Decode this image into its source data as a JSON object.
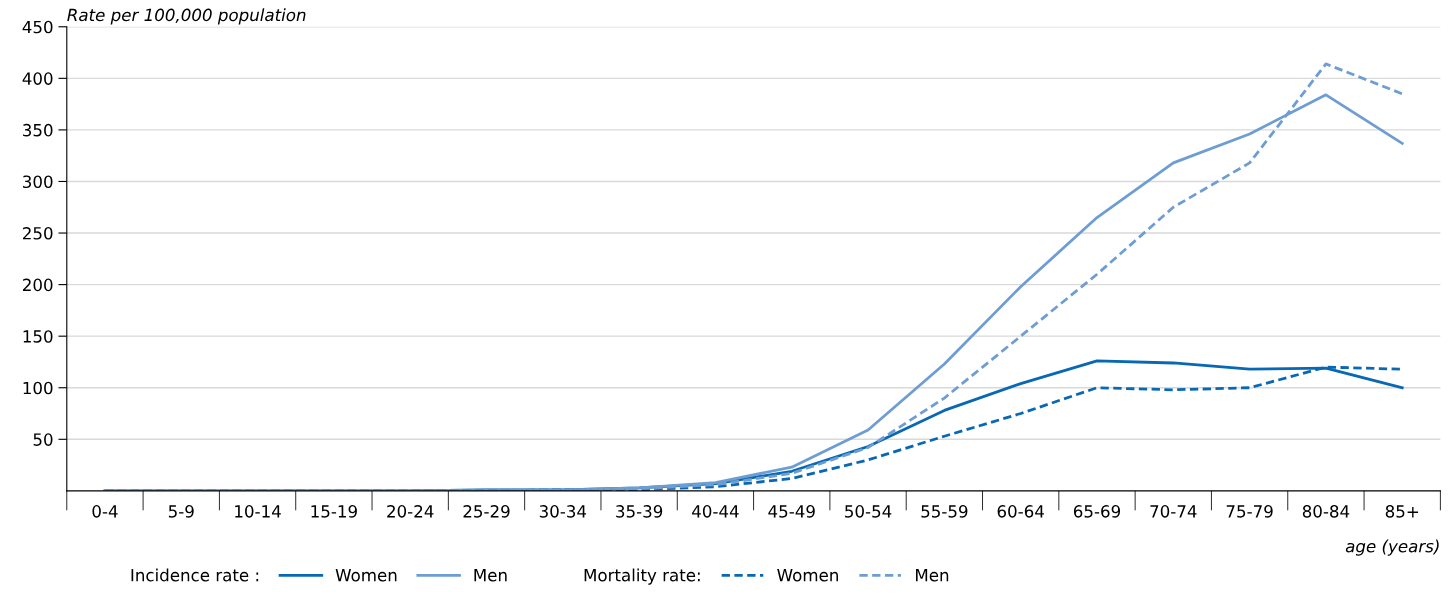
{
  "chart_data": {
    "type": "line",
    "ylabel": "Rate per 100,000 population",
    "xlabel": "age (years)",
    "categories": [
      "0-4",
      "5-9",
      "10-14",
      "15-19",
      "20-24",
      "25-29",
      "30-34",
      "35-39",
      "40-44",
      "45-49",
      "50-54",
      "55-59",
      "60-64",
      "65-69",
      "70-74",
      "75-79",
      "80-84",
      "85+"
    ],
    "series": [
      {
        "name": "Women",
        "color": "#0868b4",
        "line_style": "solid",
        "values": [
          0,
          0,
          0,
          0,
          0,
          1,
          1,
          3,
          7,
          19,
          43,
          78,
          104,
          126,
          124,
          118,
          119,
          100
        ]
      },
      {
        "name": "Men",
        "color": "#6d9dd3",
        "line_style": "solid",
        "values": [
          0,
          0,
          0,
          0,
          0,
          1,
          1,
          3,
          8,
          23,
          59,
          123,
          198,
          265,
          318,
          346,
          384,
          337
        ]
      },
      {
        "name": "Women",
        "color": "#0868b4",
        "line_style": "dashed",
        "values": [
          0,
          0,
          0,
          0,
          0,
          0,
          1,
          1,
          4,
          12,
          30,
          53,
          75,
          100,
          98,
          100,
          120,
          118
        ]
      },
      {
        "name": "Men",
        "color": "#6d9dd3",
        "line_style": "dashed",
        "values": [
          0,
          0,
          0,
          0,
          0,
          0,
          1,
          2,
          6,
          17,
          42,
          90,
          150,
          210,
          275,
          318,
          414,
          385
        ]
      }
    ],
    "ylim": [
      0,
      450
    ],
    "yticks": [
      50,
      100,
      150,
      200,
      250,
      300,
      350,
      400,
      450
    ],
    "grid": "y",
    "legend": "bottom",
    "marker": "none",
    "annotations": [
      "Incidence rate :",
      "Mortality rate:"
    ]
  }
}
